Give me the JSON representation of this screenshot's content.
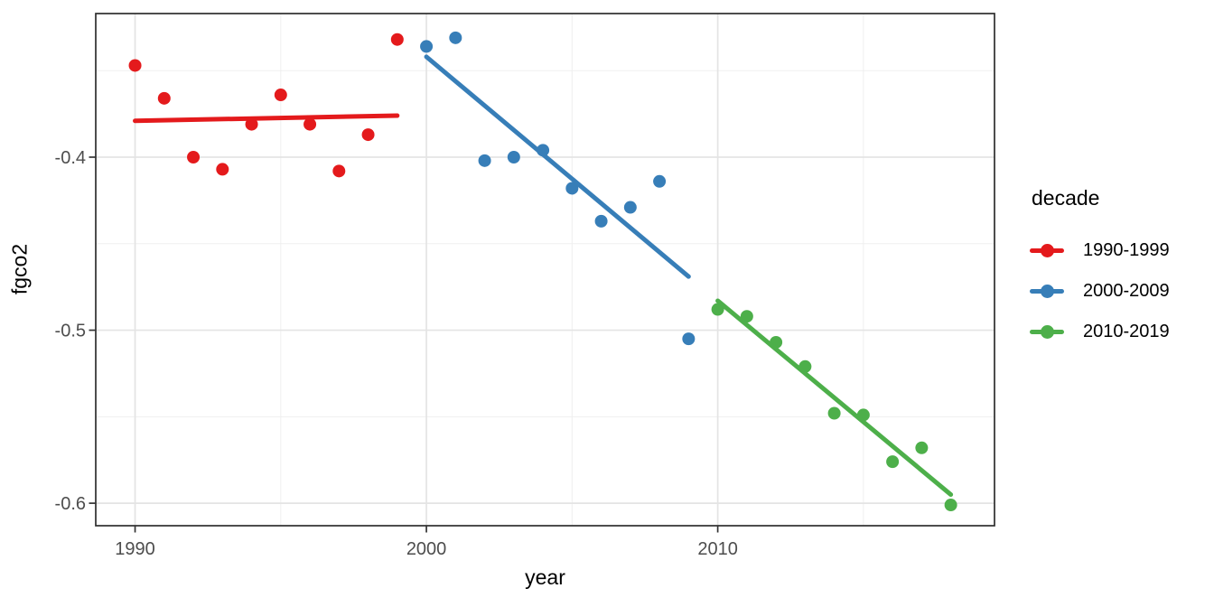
{
  "figure": {
    "xlabel": "year",
    "ylabel": "fgco2"
  },
  "legend": {
    "title": "decade",
    "position": "right",
    "entries": [
      {
        "label": "1990-1999",
        "color": "#E41A1C"
      },
      {
        "label": "2000-2009",
        "color": "#377EB8"
      },
      {
        "label": "2010-2019",
        "color": "#4DAF4A"
      }
    ]
  },
  "chart_data": {
    "type": "scatter",
    "title": "",
    "xlabel": "year",
    "ylabel": "fgco2",
    "xlim": [
      1988.65,
      2019.5
    ],
    "ylim": [
      -0.613,
      -0.317
    ],
    "grid": true,
    "legend_position": "right",
    "x_ticks": {
      "major": [
        1990,
        2000,
        2010
      ],
      "major_labels": [
        "1990",
        "2000",
        "2010"
      ],
      "minor": [
        1995,
        2005,
        2015
      ]
    },
    "y_ticks": {
      "major": [
        -0.4,
        -0.5,
        -0.6
      ],
      "major_labels": [
        "-0.4",
        "-0.5",
        "-0.6"
      ],
      "minor": [
        -0.35,
        -0.45,
        -0.55
      ]
    },
    "series": [
      {
        "name": "1990-1999",
        "color": "#E41A1C",
        "x": [
          1990,
          1991,
          1992,
          1993,
          1994,
          1995,
          1996,
          1997,
          1998,
          1999
        ],
        "y": [
          -0.347,
          -0.366,
          -0.4,
          -0.407,
          -0.381,
          -0.364,
          -0.381,
          -0.408,
          -0.387,
          -0.332
        ],
        "trend": {
          "x": [
            1990,
            1999
          ],
          "y": [
            -0.379,
            -0.376
          ]
        }
      },
      {
        "name": "2000-2009",
        "color": "#377EB8",
        "x": [
          2000,
          2001,
          2002,
          2003,
          2004,
          2005,
          2006,
          2007,
          2008,
          2009
        ],
        "y": [
          -0.336,
          -0.331,
          -0.402,
          -0.4,
          -0.396,
          -0.418,
          -0.437,
          -0.429,
          -0.414,
          -0.505
        ],
        "trend": {
          "x": [
            2000,
            2009
          ],
          "y": [
            -0.342,
            -0.469
          ]
        }
      },
      {
        "name": "2010-2019",
        "color": "#4DAF4A",
        "x": [
          2010,
          2011,
          2012,
          2013,
          2014,
          2015,
          2016,
          2017,
          2018
        ],
        "y": [
          -0.488,
          -0.492,
          -0.507,
          -0.521,
          -0.548,
          -0.549,
          -0.576,
          -0.568,
          -0.601
        ],
        "trend": {
          "x": [
            2010,
            2018
          ],
          "y": [
            -0.483,
            -0.595
          ]
        }
      }
    ]
  }
}
